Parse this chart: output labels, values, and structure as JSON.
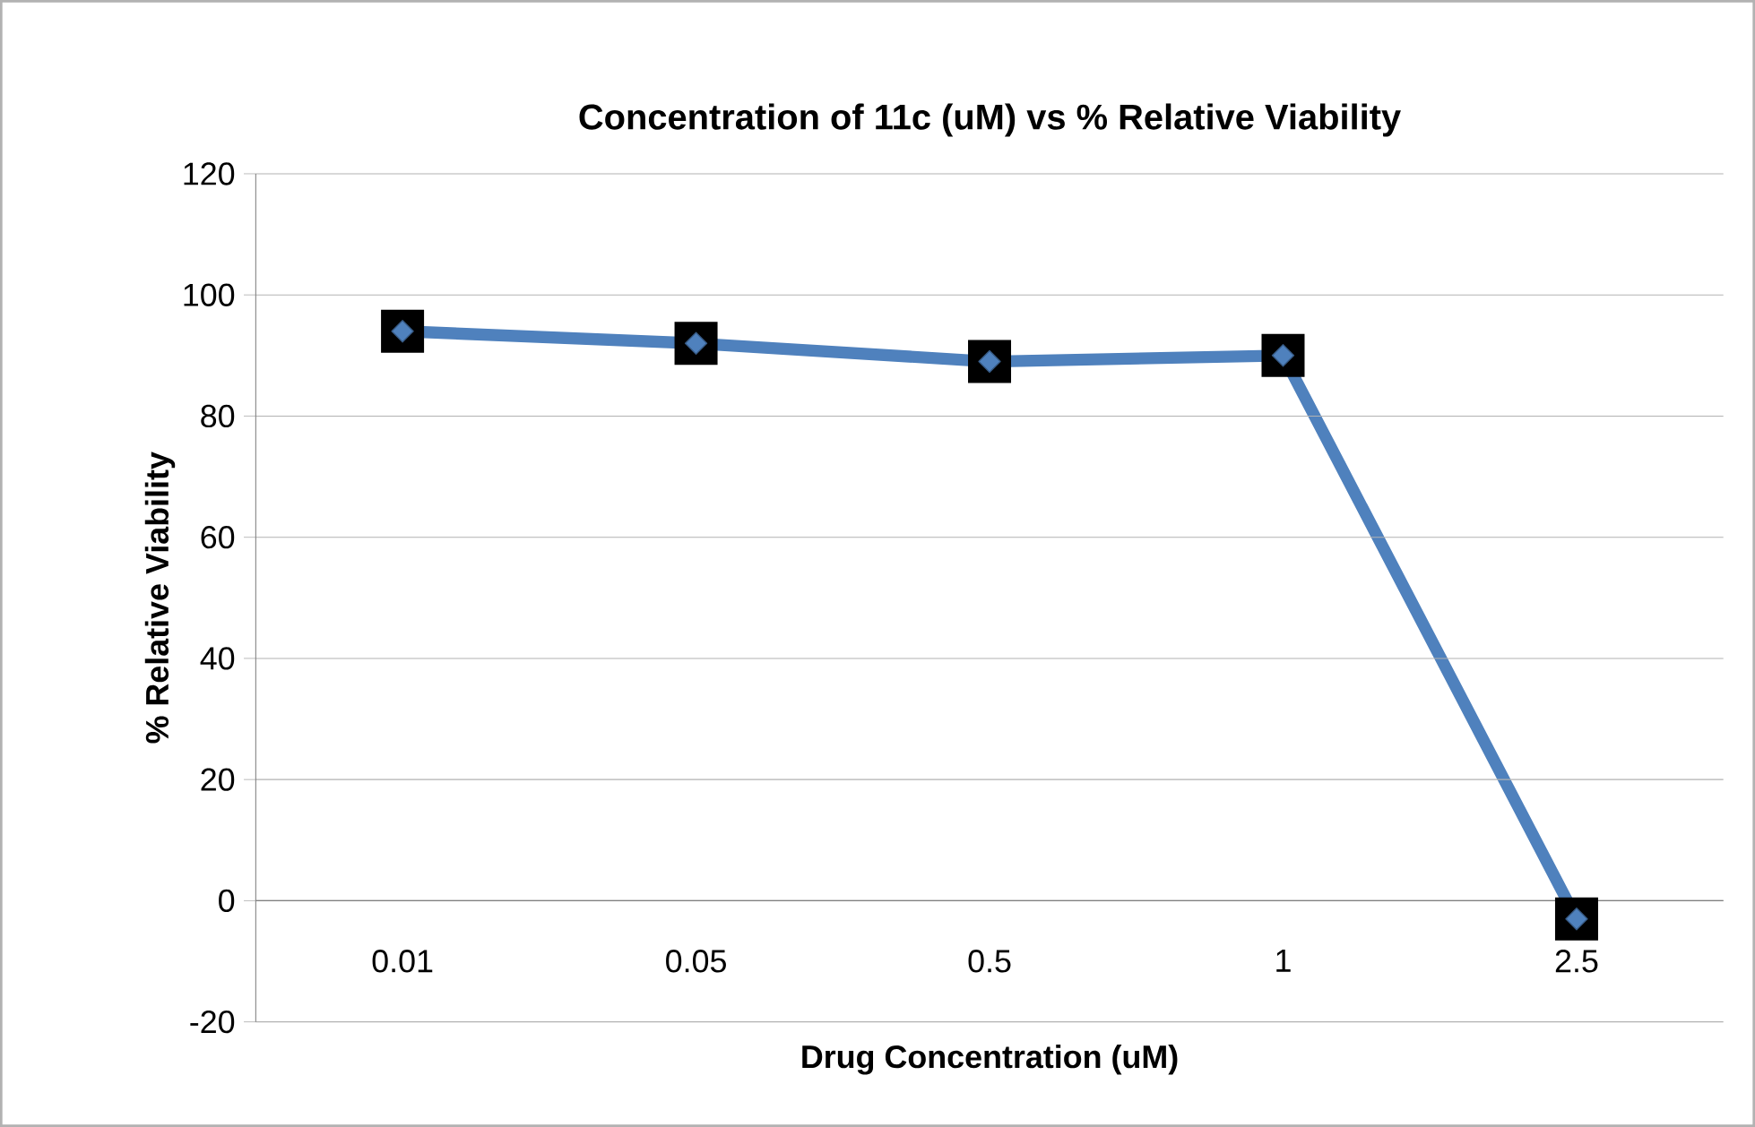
{
  "chart_data": {
    "type": "line",
    "title": "Concentration of 11c (uM) vs % Relative Viability",
    "xlabel": "Drug Concentration (uM)",
    "ylabel": "% Relative Viability",
    "categories": [
      "0.01",
      "0.05",
      "0.5",
      "1",
      "2.5"
    ],
    "series": [
      {
        "color": "#4f81bd",
        "values": [
          94,
          92,
          89,
          90,
          -3
        ]
      }
    ],
    "ylim": [
      -20,
      120
    ],
    "yticks": [
      -20,
      0,
      20,
      40,
      60,
      80,
      100,
      120
    ],
    "grid": "y",
    "marker": "diamond",
    "line_style": "solid"
  }
}
